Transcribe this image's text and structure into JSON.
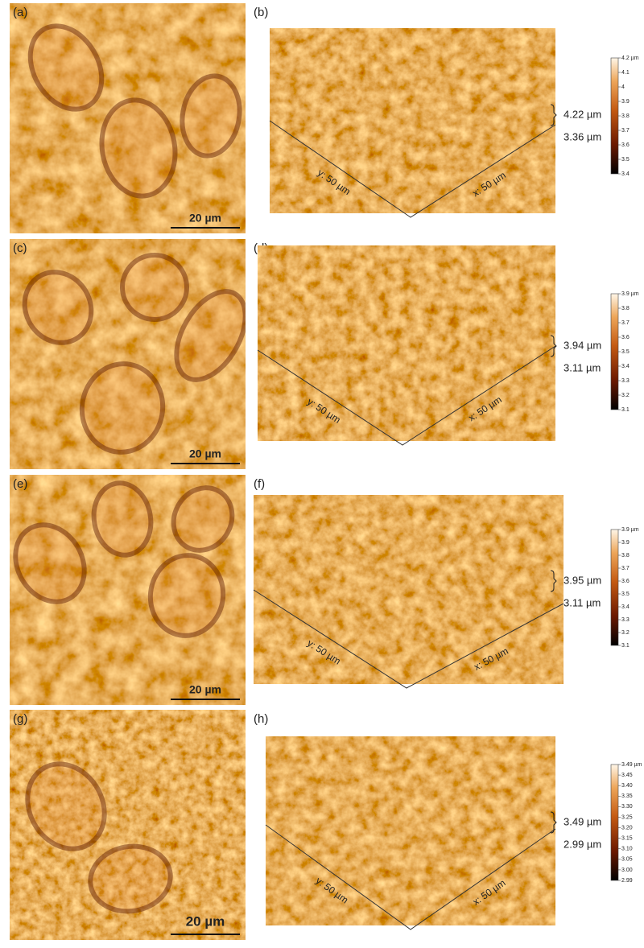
{
  "rows": [
    {
      "image": {
        "label": "(a)",
        "scale_bar": "20 µm"
      },
      "surface": {
        "label": "(b)",
        "x_axis": "x: 50 µm",
        "y_axis": "y: 50 µm",
        "height_max": "4.22 µm",
        "height_min": "3.36 µm",
        "colorbar": [
          "4.2 µm",
          "4.1",
          "4",
          "3.9",
          "3.8",
          "3.7",
          "3.6",
          "3.5",
          "3.4"
        ]
      }
    },
    {
      "image": {
        "label": "(c)",
        "scale_bar": "20 µm"
      },
      "surface": {
        "label": "(d)",
        "x_axis": "x: 50 µm",
        "y_axis": "y: 50 µm",
        "height_max": "3.94 µm",
        "height_min": "3.11 µm",
        "colorbar": [
          "3.9 µm",
          "3.8",
          "3.7",
          "3.6",
          "3.5",
          "3.4",
          "3.3",
          "3.2",
          "3.1"
        ]
      }
    },
    {
      "image": {
        "label": "(e)",
        "scale_bar": "20 µm"
      },
      "surface": {
        "label": "(f)",
        "x_axis": "x: 50 µm",
        "y_axis": "y: 50 µm",
        "height_max": "3.95 µm",
        "height_min": "3.11 µm",
        "colorbar": [
          "3.9 µm",
          "3.9",
          "3.8",
          "3.7",
          "3.6",
          "3.5",
          "3.4",
          "3.3",
          "3.2",
          "3.1"
        ]
      }
    },
    {
      "image": {
        "label": "(g)",
        "scale_bar": "20 µm"
      },
      "surface": {
        "label": "(h)",
        "x_axis": "x: 50 µm",
        "y_axis": "y: 50 µm",
        "height_max": "3.49 µm",
        "height_min": "2.99 µm",
        "colorbar": [
          "3.49 µm",
          "3.45",
          "3.40",
          "3.35",
          "3.30",
          "3.25",
          "3.20",
          "3.15",
          "3.10",
          "3.05",
          "3.00",
          "2.99"
        ]
      }
    }
  ]
}
